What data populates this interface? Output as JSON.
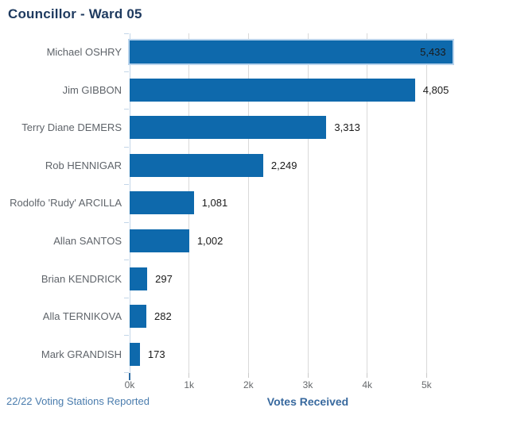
{
  "header": {
    "title": "Councillor - Ward 05"
  },
  "chart_data": {
    "type": "bar",
    "orientation": "horizontal",
    "title": "Councillor - Ward 05",
    "categories": [
      "Michael OSHRY",
      "Jim GIBBON",
      "Terry Diane DEMERS",
      "Rob HENNIGAR",
      "Rodolfo 'Rudy' ARCILLA",
      "Allan SANTOS",
      "Brian KENDRICK",
      "Alla TERNIKOVA",
      "Mark GRANDISH"
    ],
    "values": [
      5433,
      4805,
      3313,
      2249,
      1081,
      1002,
      297,
      282,
      173
    ],
    "value_labels": [
      "5,433",
      "4,805",
      "3,313",
      "2,249",
      "1,081",
      "1,002",
      "297",
      "282",
      "173"
    ],
    "xlabel": "Votes Received",
    "x_ticks": [
      {
        "value": 0,
        "label": "0k"
      },
      {
        "value": 1000,
        "label": "1k"
      },
      {
        "value": 2000,
        "label": "2k"
      },
      {
        "value": 3000,
        "label": "3k"
      },
      {
        "value": 4000,
        "label": "4k"
      },
      {
        "value": 5000,
        "label": "5k"
      }
    ],
    "xlim": [
      0,
      6000
    ],
    "grid": true,
    "legend": false,
    "bar_color": "#0e69ac",
    "leader_outline_color": "#b8d3ec",
    "first_value_label_inside": true
  },
  "footer": {
    "stations_reported": "22/22 Voting Stations Reported"
  },
  "colors": {
    "background": "#ffffff",
    "title": "#1e3a5f",
    "bar": "#0e69ac",
    "leader_highlight": "#b8d3ec",
    "category_label": "#5f646a",
    "value_label": "#1a1a1a",
    "tick_label": "#66696c",
    "gridline": "#d9d9d9",
    "y_axis_line": "#c3d6e8",
    "stations_text": "#4a7cad",
    "x_axis_title": "#38699e"
  }
}
